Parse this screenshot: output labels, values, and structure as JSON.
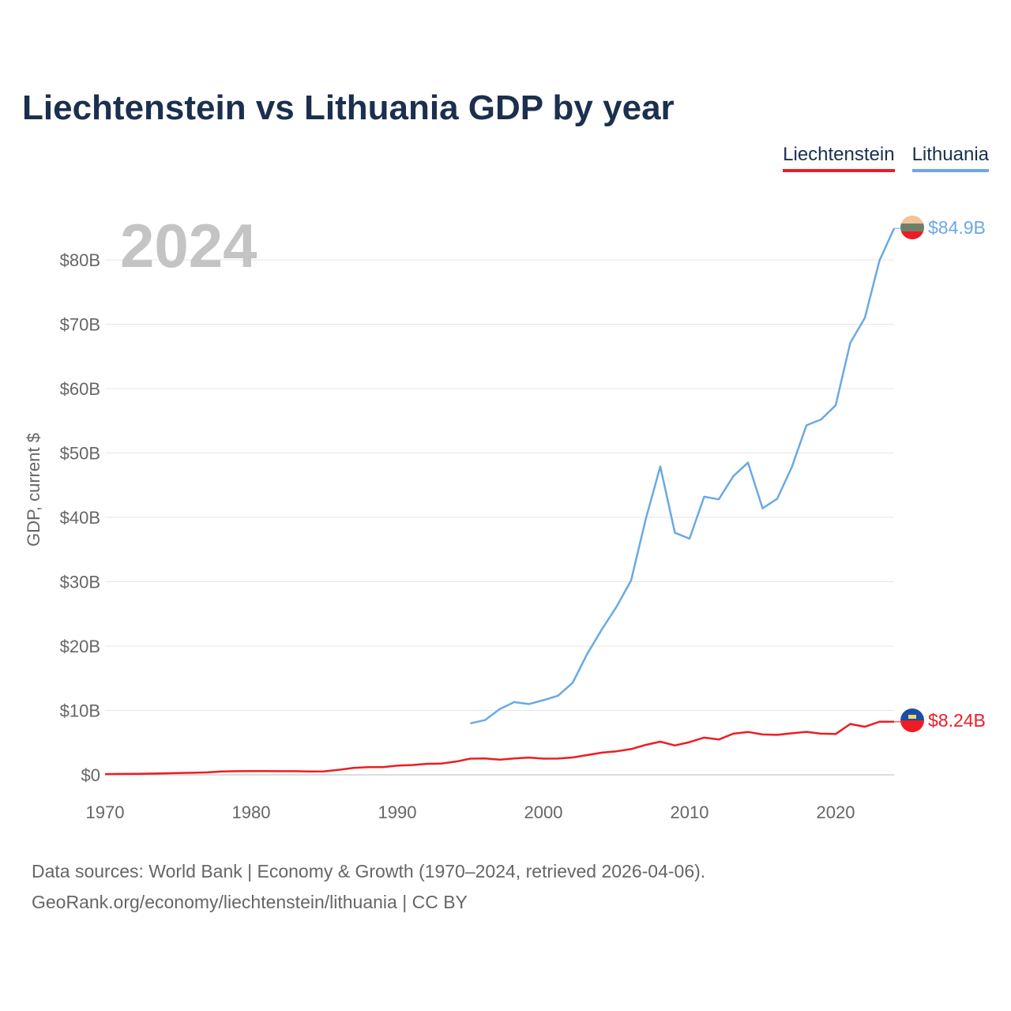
{
  "header": {
    "title": "Liechtenstein vs Lithuania GDP by year"
  },
  "legend": [
    {
      "label": "Liechtenstein",
      "color": "#ee1c24"
    },
    {
      "label": "Lithuania",
      "color": "#6aa9e4"
    }
  ],
  "footer": {
    "line1": "Data sources: World Bank | Economy & Growth (1970–2024, retrieved 2026-04-06).",
    "line2": "GeoRank.org/economy/liechtenstein/lithuania | CC BY"
  },
  "chart_data": {
    "type": "line",
    "title": "Liechtenstein vs Lithuania GDP by year",
    "ylabel": "GDP, current $",
    "xlabel": "",
    "year_watermark": "2024",
    "xlim": [
      1970,
      2024
    ],
    "ylim": [
      0,
      85
    ],
    "x_ticks": [
      "1970",
      "1980",
      "1990",
      "2000",
      "2010",
      "2020"
    ],
    "x_tick_values": [
      1970,
      1980,
      1990,
      2000,
      2010,
      2020
    ],
    "y_ticks": [
      "$0",
      "$10B",
      "$20B",
      "$30B",
      "$40B",
      "$50B",
      "$60B",
      "$70B",
      "$80B"
    ],
    "y_tick_values": [
      0,
      10,
      20,
      30,
      40,
      50,
      60,
      70,
      80
    ],
    "gridlines": true,
    "units": "billions USD",
    "series": [
      {
        "name": "Liechtenstein",
        "color": "#ee1c24",
        "end_label": "$8.24B",
        "end_value": 8.24,
        "x": [
          1970,
          1971,
          1972,
          1973,
          1974,
          1975,
          1976,
          1977,
          1978,
          1979,
          1980,
          1981,
          1982,
          1983,
          1984,
          1985,
          1986,
          1987,
          1988,
          1989,
          1990,
          1991,
          1992,
          1993,
          1994,
          1995,
          1996,
          1997,
          1998,
          1999,
          2000,
          2001,
          2002,
          2003,
          2004,
          2005,
          2006,
          2007,
          2008,
          2009,
          2010,
          2011,
          2012,
          2013,
          2014,
          2015,
          2016,
          2017,
          2018,
          2019,
          2020,
          2021,
          2022,
          2023,
          2024
        ],
        "values": [
          0.11,
          0.13,
          0.16,
          0.19,
          0.23,
          0.28,
          0.32,
          0.38,
          0.51,
          0.56,
          0.58,
          0.58,
          0.57,
          0.56,
          0.53,
          0.54,
          0.79,
          1.08,
          1.2,
          1.19,
          1.42,
          1.52,
          1.7,
          1.76,
          2.05,
          2.52,
          2.55,
          2.35,
          2.55,
          2.69,
          2.52,
          2.53,
          2.7,
          3.07,
          3.45,
          3.66,
          4.0,
          4.65,
          5.15,
          4.56,
          5.08,
          5.78,
          5.49,
          6.39,
          6.66,
          6.27,
          6.21,
          6.46,
          6.67,
          6.39,
          6.34,
          7.9,
          7.47,
          8.24,
          8.24
        ]
      },
      {
        "name": "Lithuania",
        "color": "#6aa9e4",
        "end_label": "$84.9B",
        "end_value": 84.9,
        "x": [
          1995,
          1996,
          1997,
          1998,
          1999,
          2000,
          2001,
          2002,
          2003,
          2004,
          2005,
          2006,
          2007,
          2008,
          2009,
          2010,
          2011,
          2012,
          2013,
          2014,
          2015,
          2016,
          2017,
          2018,
          2019,
          2020,
          2021,
          2022,
          2023,
          2024
        ],
        "values": [
          8.0,
          8.5,
          10.2,
          11.3,
          11.0,
          11.6,
          12.3,
          14.3,
          18.8,
          22.6,
          26.1,
          30.2,
          39.7,
          47.9,
          37.6,
          36.7,
          43.2,
          42.8,
          46.4,
          48.5,
          41.4,
          42.9,
          47.8,
          54.3,
          55.2,
          57.4,
          67.1,
          71.0,
          79.9,
          84.9
        ]
      }
    ]
  }
}
